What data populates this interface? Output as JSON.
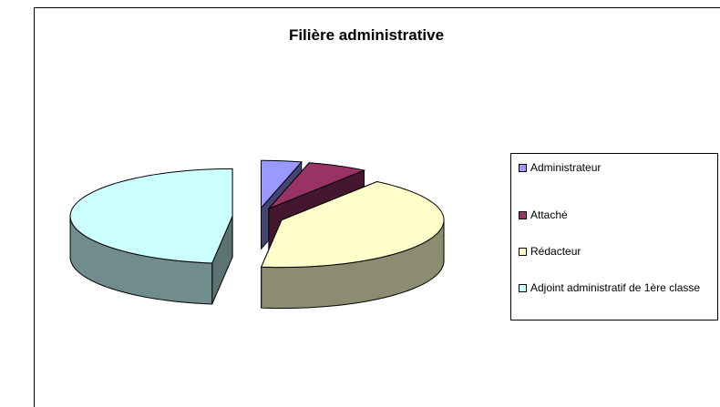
{
  "chart_data": {
    "type": "pie",
    "title": "Filière administrative",
    "categories": [
      "Administrateur",
      "Attaché",
      "Rédacteur",
      "Adjoint administratif de 1ère classe"
    ],
    "values": [
      4,
      6,
      42,
      48
    ],
    "colors": [
      "#9999ff",
      "#993366",
      "#ffffcc",
      "#ccffff"
    ],
    "legend": "right"
  }
}
